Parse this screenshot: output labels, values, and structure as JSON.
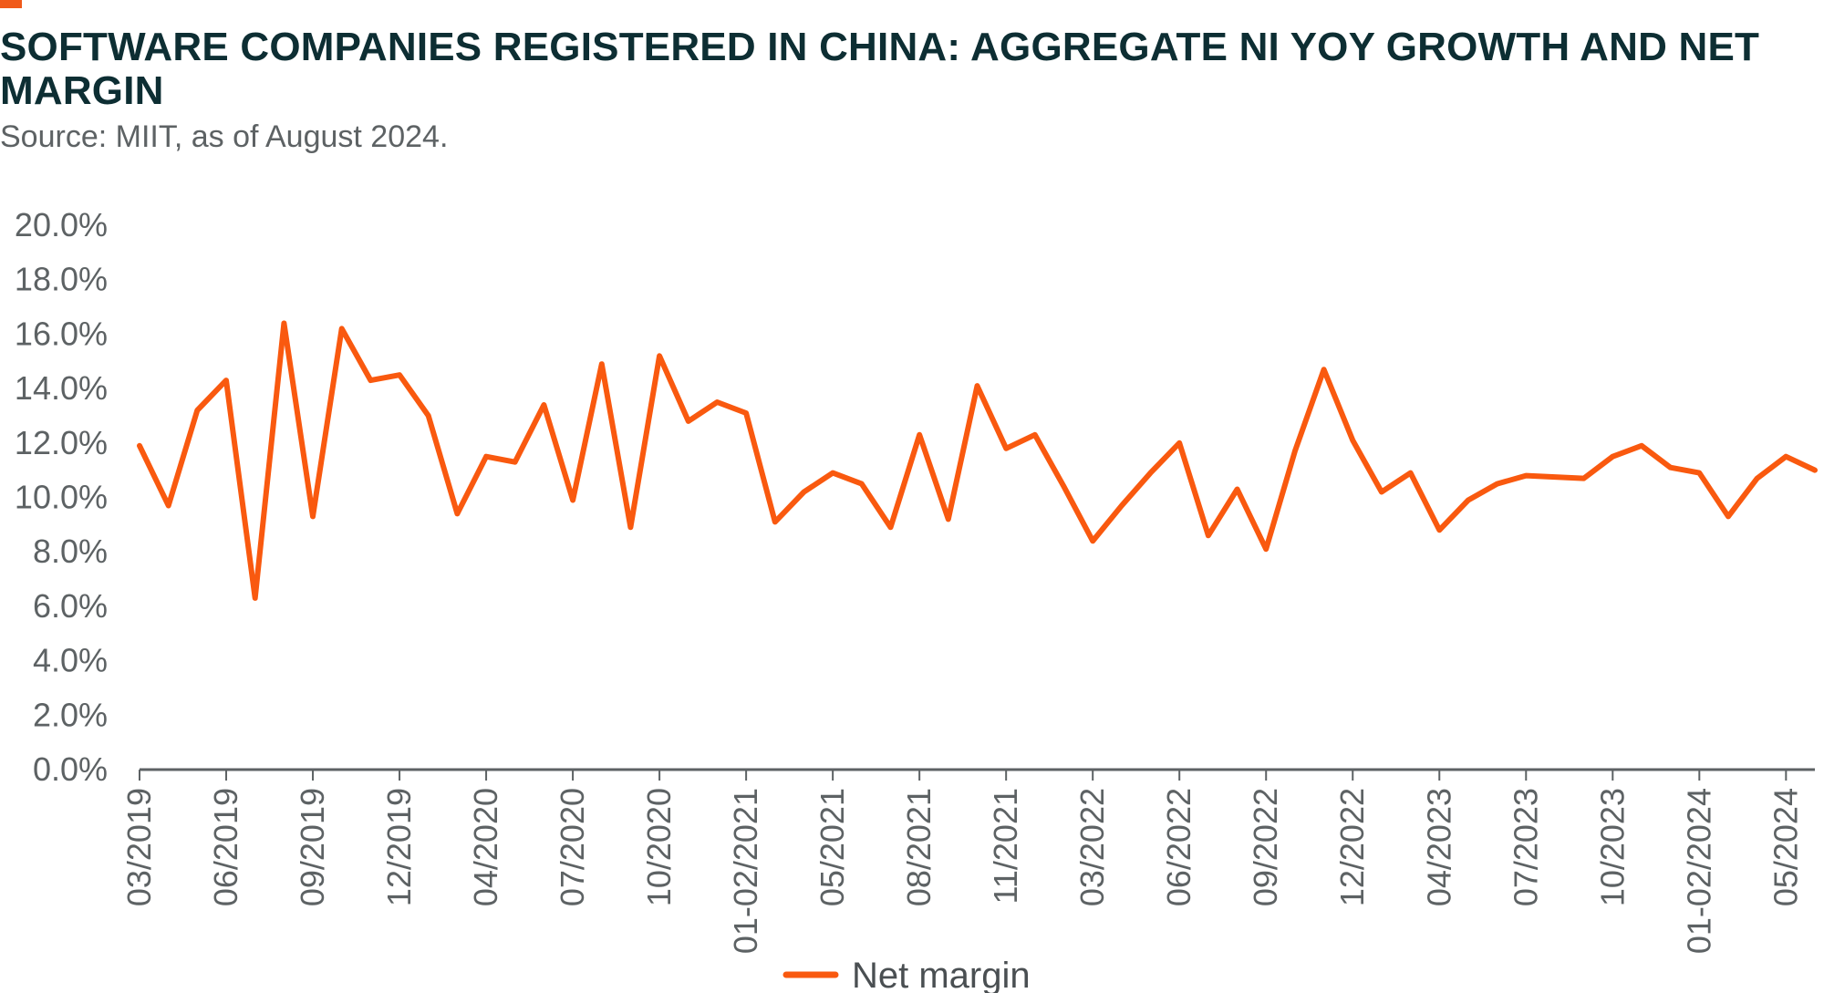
{
  "header": {
    "title": "SOFTWARE COMPANIES REGISTERED IN CHINA: AGGREGATE NI YOY GROWTH AND NET MARGIN",
    "source": "Source: MIIT, as of August 2024."
  },
  "colors": {
    "accent": "#f05a1a",
    "title": "#0d2e33",
    "axis_text": "#5d6264",
    "axis_line": "#5d6264",
    "series": "#f9590f"
  },
  "chart_data": {
    "type": "line",
    "title": "SOFTWARE COMPANIES REGISTERED IN CHINA: AGGREGATE NI YOY GROWTH AND NET MARGIN",
    "ylim": [
      0,
      20
    ],
    "yticks": [
      "0.0%",
      "2.0%",
      "4.0%",
      "6.0%",
      "8.0%",
      "10.0%",
      "12.0%",
      "14.0%",
      "16.0%",
      "18.0%",
      "20.0%"
    ],
    "x_tick_labels": [
      "03/2019",
      "06/2019",
      "09/2019",
      "12/2019",
      "04/2020",
      "07/2020",
      "10/2020",
      "01-02/2021",
      "05/2021",
      "08/2021",
      "11/2021",
      "03/2022",
      "06/2022",
      "09/2022",
      "12/2022",
      "04/2023",
      "07/2023",
      "10/2023",
      "01-02/2024",
      "05/2024"
    ],
    "grid": false,
    "legend_position": "bottom-center",
    "series": [
      {
        "name": "Net margin",
        "color": "#f9590f",
        "values": [
          11.9,
          9.7,
          13.2,
          14.3,
          6.3,
          16.4,
          9.3,
          16.2,
          14.3,
          14.5,
          13.0,
          9.4,
          11.5,
          11.3,
          13.4,
          9.9,
          14.9,
          8.9,
          15.2,
          12.8,
          13.5,
          13.1,
          9.1,
          10.2,
          10.9,
          10.5,
          8.9,
          12.3,
          9.2,
          14.1,
          11.8,
          12.3,
          10.4,
          8.4,
          9.7,
          10.9,
          12.0,
          8.6,
          10.3,
          8.1,
          11.7,
          14.7,
          12.1,
          10.2,
          10.9,
          8.8,
          9.9,
          10.5,
          10.8,
          10.75,
          10.7,
          11.5,
          11.9,
          11.1,
          10.9,
          9.3,
          10.7,
          11.5,
          11.0
        ]
      }
    ]
  }
}
